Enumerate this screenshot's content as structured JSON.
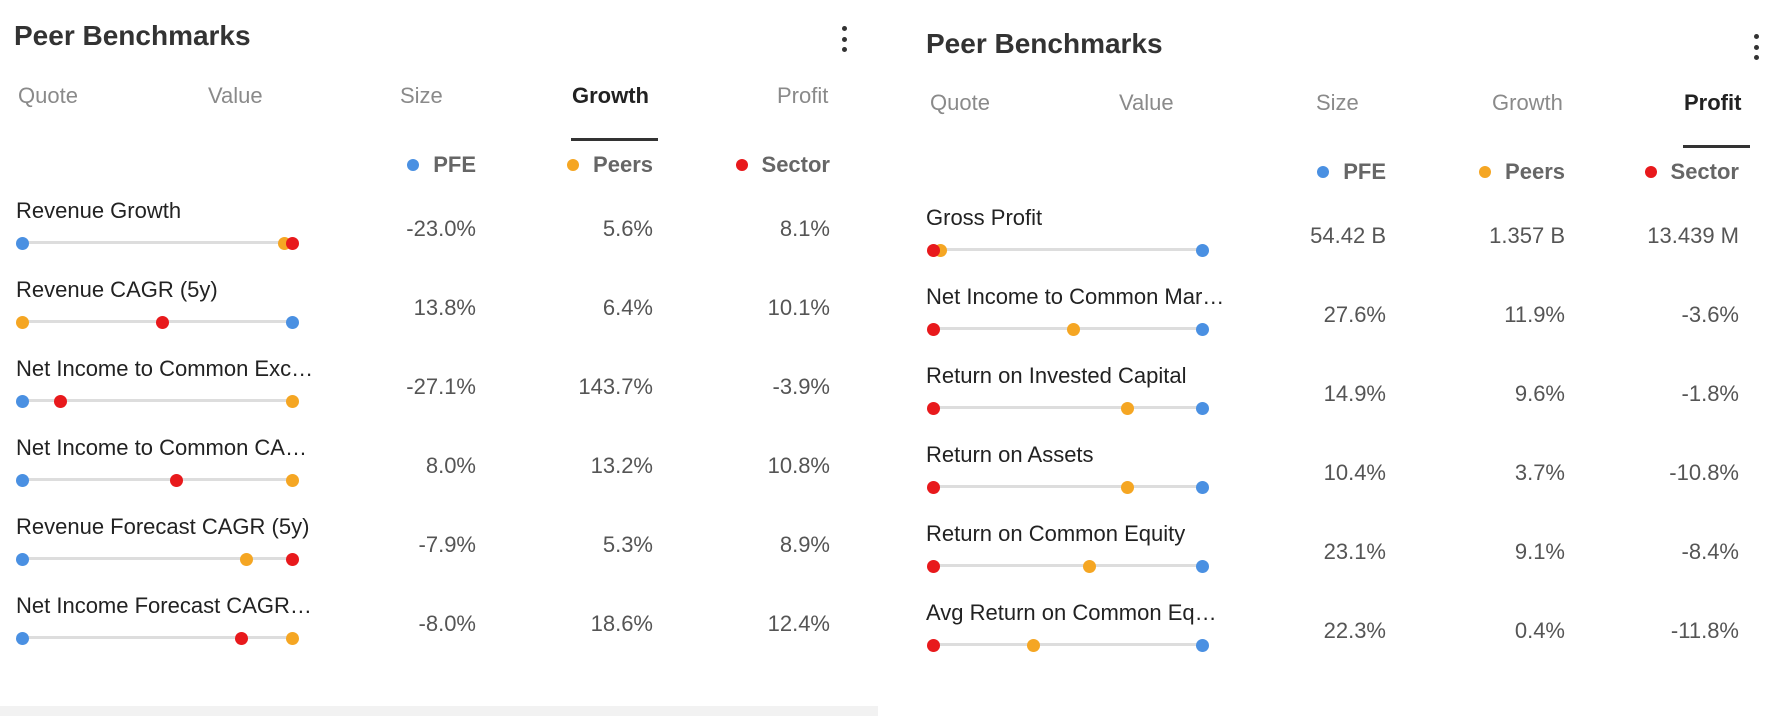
{
  "colors": {
    "pfe": "#4a90e2",
    "peers": "#f5a623",
    "sector": "#e8191c"
  },
  "left": {
    "title": "Peer Benchmarks",
    "tabs": [
      {
        "label": "Quote",
        "active": false
      },
      {
        "label": "Value",
        "active": false
      },
      {
        "label": "Size",
        "active": false
      },
      {
        "label": "Growth",
        "active": true
      },
      {
        "label": "Profit",
        "active": false
      }
    ],
    "legend": {
      "pfe": "PFE",
      "peers": "Peers",
      "sector": "Sector"
    },
    "rows": [
      {
        "label": "Revenue Growth",
        "pfe": "-23.0%",
        "peers": "5.6%",
        "sector": "8.1%",
        "pos": {
          "pfe": 0.0,
          "peers": 0.97,
          "sector": 1.0
        }
      },
      {
        "label": "Revenue CAGR (5y)",
        "pfe": "13.8%",
        "peers": "6.4%",
        "sector": "10.1%",
        "pos": {
          "pfe": 1.0,
          "peers": 0.0,
          "sector": 0.52
        }
      },
      {
        "label": "Net Income to Common Exc…",
        "pfe": "-27.1%",
        "peers": "143.7%",
        "sector": "-3.9%",
        "pos": {
          "pfe": 0.0,
          "peers": 1.0,
          "sector": 0.14
        }
      },
      {
        "label": "Net Income to Common CA…",
        "pfe": "8.0%",
        "peers": "13.2%",
        "sector": "10.8%",
        "pos": {
          "pfe": 0.0,
          "peers": 1.0,
          "sector": 0.57
        }
      },
      {
        "label": "Revenue Forecast CAGR (5y)",
        "pfe": "-7.9%",
        "peers": "5.3%",
        "sector": "8.9%",
        "pos": {
          "pfe": 0.0,
          "peers": 0.83,
          "sector": 1.0
        }
      },
      {
        "label": "Net Income Forecast CAGR…",
        "pfe": "-8.0%",
        "peers": "18.6%",
        "sector": "12.4%",
        "pos": {
          "pfe": 0.0,
          "peers": 1.0,
          "sector": 0.81
        }
      }
    ]
  },
  "right": {
    "title": "Peer Benchmarks",
    "tabs": [
      {
        "label": "Quote",
        "active": false
      },
      {
        "label": "Value",
        "active": false
      },
      {
        "label": "Size",
        "active": false
      },
      {
        "label": "Growth",
        "active": false
      },
      {
        "label": "Profit",
        "active": true
      }
    ],
    "legend": {
      "pfe": "PFE",
      "peers": "Peers",
      "sector": "Sector"
    },
    "rows": [
      {
        "label": "Gross Profit",
        "pfe": "54.42 B",
        "peers": "1.357 B",
        "sector": "13.439 M",
        "pos": {
          "pfe": 1.0,
          "peers": 0.025,
          "sector": 0.0
        }
      },
      {
        "label": "Net Income to Common Mar…",
        "pfe": "27.6%",
        "peers": "11.9%",
        "sector": "-3.6%",
        "pos": {
          "pfe": 1.0,
          "peers": 0.52,
          "sector": 0.0
        }
      },
      {
        "label": "Return on Invested Capital",
        "pfe": "14.9%",
        "peers": "9.6%",
        "sector": "-1.8%",
        "pos": {
          "pfe": 1.0,
          "peers": 0.72,
          "sector": 0.0
        }
      },
      {
        "label": "Return on Assets",
        "pfe": "10.4%",
        "peers": "3.7%",
        "sector": "-10.8%",
        "pos": {
          "pfe": 1.0,
          "peers": 0.72,
          "sector": 0.0
        }
      },
      {
        "label": "Return on Common Equity",
        "pfe": "23.1%",
        "peers": "9.1%",
        "sector": "-8.4%",
        "pos": {
          "pfe": 1.0,
          "peers": 0.58,
          "sector": 0.0
        }
      },
      {
        "label": "Avg Return on Common Eq…",
        "pfe": "22.3%",
        "peers": "0.4%",
        "sector": "-11.8%",
        "pos": {
          "pfe": 1.0,
          "peers": 0.37,
          "sector": 0.0
        }
      }
    ]
  }
}
